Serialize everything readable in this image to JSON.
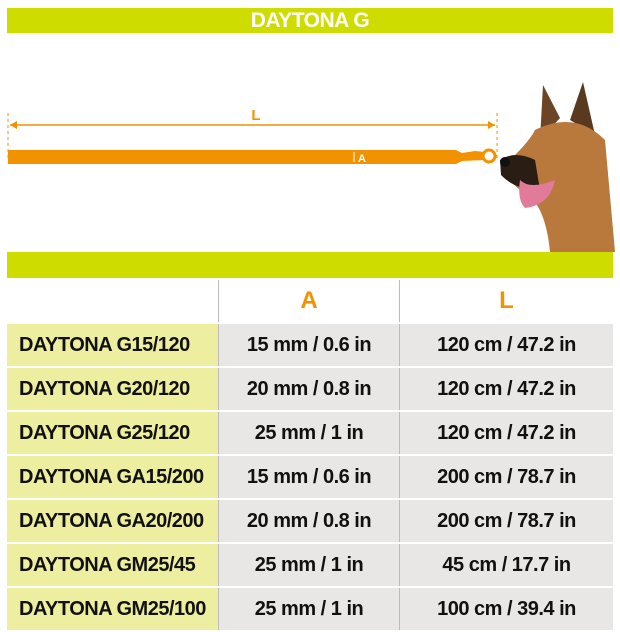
{
  "title": "DAYTONA G",
  "diagram": {
    "length_label": "L",
    "width_label": "A",
    "color": "#f39200"
  },
  "accent": "#cfdc00",
  "table": {
    "headers": [
      "",
      "A",
      "L"
    ],
    "rows": [
      {
        "name": "DAYTONA G15/120",
        "a": "15 mm / 0.6 in",
        "l": "120 cm / 47.2 in"
      },
      {
        "name": "DAYTONA G20/120",
        "a": "20 mm / 0.8 in",
        "l": "120 cm / 47.2 in"
      },
      {
        "name": "DAYTONA G25/120",
        "a": "25 mm / 1 in",
        "l": "120 cm / 47.2 in"
      },
      {
        "name": "DAYTONA GA15/200",
        "a": "15 mm / 0.6 in",
        "l": "200 cm / 78.7 in"
      },
      {
        "name": "DAYTONA GA20/200",
        "a": "20 mm / 0.8 in",
        "l": "200 cm / 78.7 in"
      },
      {
        "name": "DAYTONA GM25/45",
        "a": "25 mm / 1 in",
        "l": "45 cm / 17.7 in"
      },
      {
        "name": "DAYTONA GM25/100",
        "a": "25 mm / 1 in",
        "l": "100 cm / 39.4 in"
      }
    ]
  }
}
